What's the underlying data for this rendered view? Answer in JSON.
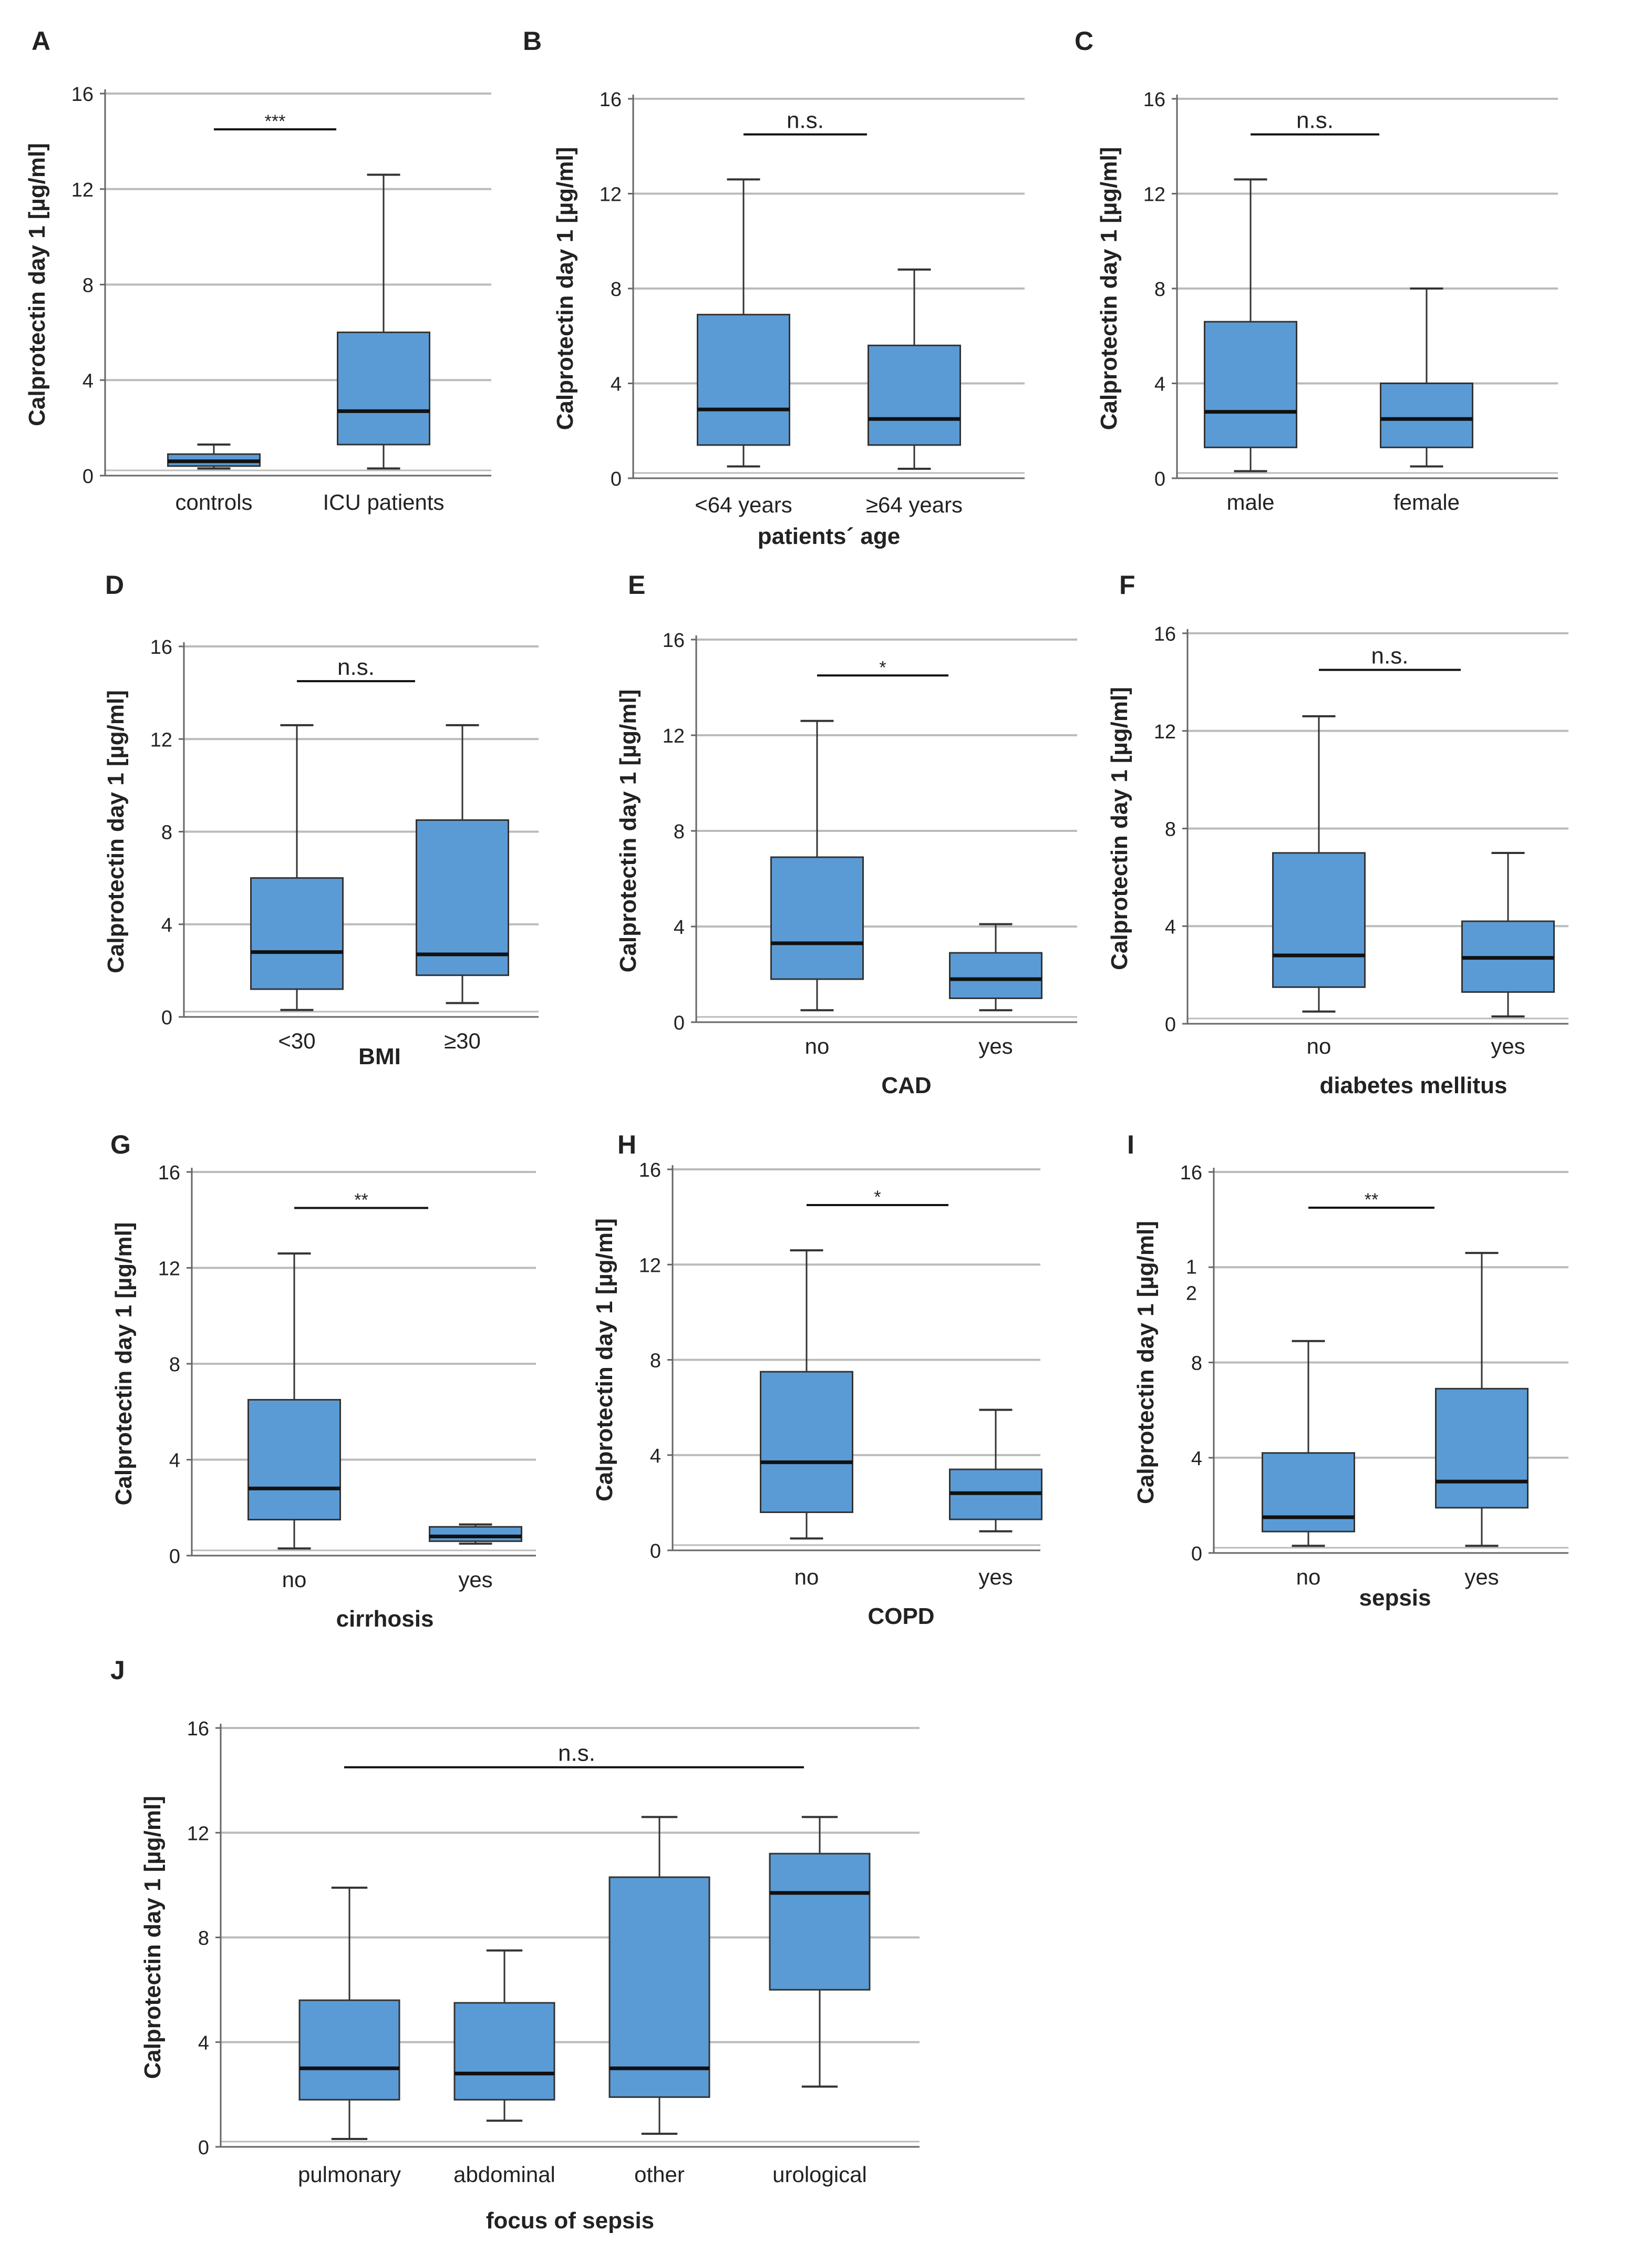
{
  "figure": {
    "ytick_labels": [
      "0",
      "4",
      "8",
      "12",
      "16"
    ],
    "panel_i_ytick_labels": [
      "0",
      "4",
      "8",
      "1\n2",
      "16"
    ],
    "colors": {
      "box_fill": "#5b9bd5",
      "box_stroke": "#333333",
      "grid": "#bbbbbb",
      "axis": "#666666",
      "median": "#111111",
      "text": "#222222"
    }
  },
  "chart_data": [
    {
      "panel": "A",
      "type": "box",
      "ylabel": "Calprotectin day 1 [µg/ml]",
      "xlabel": "",
      "ylim": [
        0,
        16
      ],
      "yticks": [
        0,
        4,
        8,
        12,
        16
      ],
      "grid": true,
      "categories": [
        "controls",
        "ICU patients"
      ],
      "boxes": [
        {
          "min": 0.3,
          "q1": 0.4,
          "median": 0.6,
          "q3": 0.9,
          "max": 1.3
        },
        {
          "min": 0.3,
          "q1": 1.3,
          "median": 2.7,
          "q3": 6.0,
          "max": 12.6
        }
      ],
      "significance": "***"
    },
    {
      "panel": "B",
      "type": "box",
      "ylabel": "Calprotectin day 1 [µg/ml]",
      "xlabel": "patients´ age",
      "ylim": [
        0,
        16
      ],
      "yticks": [
        0,
        4,
        8,
        12,
        16
      ],
      "grid": true,
      "categories": [
        "<64 years",
        "≥64 years"
      ],
      "boxes": [
        {
          "min": 0.5,
          "q1": 1.4,
          "median": 2.9,
          "q3": 6.9,
          "max": 12.6
        },
        {
          "min": 0.4,
          "q1": 1.4,
          "median": 2.5,
          "q3": 5.6,
          "max": 8.8
        }
      ],
      "significance": "n.s."
    },
    {
      "panel": "C",
      "type": "box",
      "ylabel": "Calprotectin day 1 [µg/ml]",
      "xlabel": "",
      "ylim": [
        0,
        16
      ],
      "yticks": [
        0,
        4,
        8,
        12,
        16
      ],
      "grid": true,
      "categories": [
        "male",
        "female"
      ],
      "boxes": [
        {
          "min": 0.3,
          "q1": 1.3,
          "median": 2.8,
          "q3": 6.6,
          "max": 12.6
        },
        {
          "min": 0.5,
          "q1": 1.3,
          "median": 2.5,
          "q3": 4.0,
          "max": 8.0
        }
      ],
      "significance": "n.s."
    },
    {
      "panel": "D",
      "type": "box",
      "ylabel": "Calprotectin day 1 [µg/ml]",
      "xlabel": "BMI",
      "ylim": [
        0,
        16
      ],
      "yticks": [
        0,
        4,
        8,
        12,
        16
      ],
      "grid": true,
      "categories": [
        "<30",
        "≥30"
      ],
      "boxes": [
        {
          "min": 0.3,
          "q1": 1.2,
          "median": 2.8,
          "q3": 6.0,
          "max": 12.6
        },
        {
          "min": 0.6,
          "q1": 1.8,
          "median": 2.7,
          "q3": 8.5,
          "max": 12.6
        }
      ],
      "significance": "n.s."
    },
    {
      "panel": "E",
      "type": "box",
      "ylabel": "Calprotectin day 1 [µg/ml]",
      "xlabel": "CAD",
      "ylim": [
        0,
        16
      ],
      "yticks": [
        0,
        4,
        8,
        12,
        16
      ],
      "grid": true,
      "categories": [
        "no",
        "yes"
      ],
      "boxes": [
        {
          "min": 0.5,
          "q1": 1.8,
          "median": 3.3,
          "q3": 6.9,
          "max": 12.6
        },
        {
          "min": 0.5,
          "q1": 1.0,
          "median": 1.8,
          "q3": 2.9,
          "max": 4.1
        }
      ],
      "significance": "*"
    },
    {
      "panel": "F",
      "type": "box",
      "ylabel": "Calprotectin day 1 [µg/ml]",
      "xlabel": "diabetes mellitus",
      "ylim": [
        0,
        16
      ],
      "yticks": [
        0,
        4,
        8,
        12,
        16
      ],
      "grid": true,
      "categories": [
        "no",
        "yes"
      ],
      "boxes": [
        {
          "min": 0.5,
          "q1": 1.5,
          "median": 2.8,
          "q3": 7.0,
          "max": 12.6
        },
        {
          "min": 0.3,
          "q1": 1.3,
          "median": 2.7,
          "q3": 4.2,
          "max": 7.0
        }
      ],
      "significance": "n.s."
    },
    {
      "panel": "G",
      "type": "box",
      "ylabel": "Calprotectin day 1 [µg/ml]",
      "xlabel": "cirrhosis",
      "ylim": [
        0,
        16
      ],
      "yticks": [
        0,
        4,
        8,
        12,
        16
      ],
      "grid": true,
      "categories": [
        "no",
        "yes"
      ],
      "boxes": [
        {
          "min": 0.3,
          "q1": 1.5,
          "median": 2.8,
          "q3": 6.5,
          "max": 12.6
        },
        {
          "min": 0.5,
          "q1": 0.6,
          "median": 0.8,
          "q3": 1.2,
          "max": 1.3
        }
      ],
      "significance": "**"
    },
    {
      "panel": "H",
      "type": "box",
      "ylabel": "Calprotectin day 1 [µg/ml]",
      "xlabel": "COPD",
      "ylim": [
        0,
        16
      ],
      "yticks": [
        0,
        4,
        8,
        12,
        16
      ],
      "grid": true,
      "categories": [
        "no",
        "yes"
      ],
      "boxes": [
        {
          "min": 0.5,
          "q1": 1.6,
          "median": 3.7,
          "q3": 7.5,
          "max": 12.6
        },
        {
          "min": 0.8,
          "q1": 1.3,
          "median": 2.4,
          "q3": 3.4,
          "max": 5.9
        }
      ],
      "significance": "*"
    },
    {
      "panel": "I",
      "type": "box",
      "ylabel": "Calprotectin day 1 [µg/ml]",
      "xlabel": "sepsis",
      "ylim": [
        0,
        16
      ],
      "yticks": [
        0,
        4,
        8,
        12,
        16
      ],
      "grid": true,
      "categories": [
        "no",
        "yes"
      ],
      "boxes": [
        {
          "min": 0.3,
          "q1": 0.9,
          "median": 1.5,
          "q3": 4.2,
          "max": 8.9
        },
        {
          "min": 0.3,
          "q1": 1.9,
          "median": 3.0,
          "q3": 6.9,
          "max": 12.6
        }
      ],
      "significance": "**"
    },
    {
      "panel": "J",
      "type": "box",
      "ylabel": "Calprotectin day 1 [µg/ml]",
      "xlabel": "focus of sepsis",
      "ylim": [
        0,
        16
      ],
      "yticks": [
        0,
        4,
        8,
        12,
        16
      ],
      "grid": true,
      "categories": [
        "pulmonary",
        "abdominal",
        "other",
        "urological"
      ],
      "boxes": [
        {
          "min": 0.3,
          "q1": 1.8,
          "median": 3.0,
          "q3": 5.6,
          "max": 9.9
        },
        {
          "min": 1.0,
          "q1": 1.8,
          "median": 2.8,
          "q3": 5.5,
          "max": 7.5
        },
        {
          "min": 0.5,
          "q1": 1.9,
          "median": 3.0,
          "q3": 10.3,
          "max": 12.6
        },
        {
          "min": 2.3,
          "q1": 6.0,
          "median": 9.7,
          "q3": 11.2,
          "max": 12.6
        }
      ],
      "significance": "n.s."
    }
  ]
}
